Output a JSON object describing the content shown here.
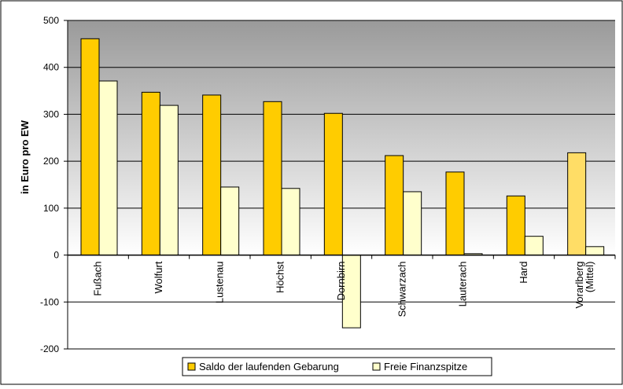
{
  "chart_data": {
    "type": "bar",
    "title": "",
    "xlabel": "",
    "ylabel": "in Euro pro EW",
    "ylim": [
      -200,
      500
    ],
    "y_ticks": [
      500,
      400,
      300,
      200,
      100,
      0,
      -100,
      -200
    ],
    "grid": true,
    "legend_position": "bottom",
    "categories": [
      "Fußach",
      "Wolfurt",
      "Lustenau",
      "Höchst",
      "Dornbirn",
      "Schwarzach",
      "Lauterach",
      "Hard",
      [
        "Vorarlberg",
        "(Mittel)"
      ]
    ],
    "series": [
      {
        "name": "Saldo der laufenden Gebarung",
        "color": "#ffcc00",
        "highlight_color": "#ffdd66",
        "values": [
          461,
          347,
          341,
          327,
          302,
          212,
          177,
          126,
          218
        ]
      },
      {
        "name": "Freie Finanzspitze",
        "color": "#ffffcc",
        "highlight_color": "#ffffcc",
        "values": [
          371,
          319,
          145,
          142,
          -155,
          135,
          3,
          40,
          18
        ]
      }
    ],
    "highlight_category_index": 8,
    "colors": {
      "plot_gradient_top": "#9a9a9a",
      "plot_gradient_bottom": "#ffffff",
      "negative_area": "#ffffff",
      "bar_stroke": "#000000",
      "grid": "#000000"
    }
  }
}
